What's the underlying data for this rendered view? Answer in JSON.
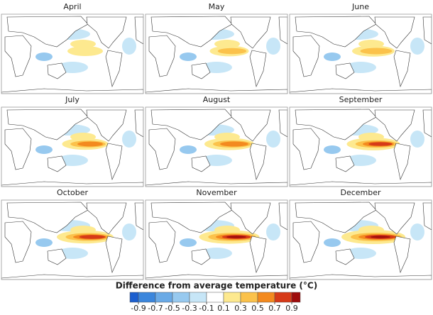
{
  "panels": [
    {
      "title": "April"
    },
    {
      "title": "May"
    },
    {
      "title": "June"
    },
    {
      "title": "July"
    },
    {
      "title": "August"
    },
    {
      "title": "September"
    },
    {
      "title": "October"
    },
    {
      "title": "November"
    },
    {
      "title": "December"
    }
  ],
  "legend": {
    "title": "Difference from average temperature (°C)",
    "ticks": [
      -0.9,
      -0.7,
      -0.5,
      -0.3,
      -0.1,
      0.1,
      0.3,
      0.5,
      0.7,
      0.9
    ],
    "colors": [
      "#1c5fcf",
      "#3b86dc",
      "#6aaae6",
      "#97c9ef",
      "#c7e6f7",
      "#ffffff",
      "#fde98f",
      "#fbc24b",
      "#f38a1f",
      "#d63a18",
      "#9e0b0b"
    ]
  }
}
